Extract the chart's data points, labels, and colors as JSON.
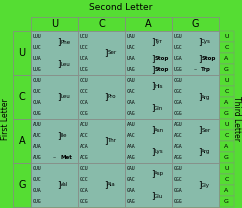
{
  "title": "Second Letter",
  "first_letter_label": "First Letter",
  "third_letter_label": "Third Letter",
  "col_headers": [
    "U",
    "C",
    "A",
    "G"
  ],
  "row_headers": [
    "U",
    "C",
    "A",
    "G"
  ],
  "third_letters": [
    "U",
    "C",
    "A",
    "G"
  ],
  "green": "#55dd33",
  "teal": "#88bbaa",
  "cells": [
    {
      "codons": [
        "UUU",
        "UUC",
        "UUA",
        "UUG"
      ],
      "aminos": [
        {
          "text": "Phe",
          "bold": false,
          "bracket": 2
        },
        {
          "text": "Leu",
          "bold": false,
          "bracket": 2,
          "dash": false
        }
      ]
    },
    {
      "codons": [
        "UCU",
        "UCC",
        "UCA",
        "UCG"
      ],
      "aminos": [
        {
          "text": "Ser",
          "bold": false,
          "bracket": 4
        }
      ]
    },
    {
      "codons": [
        "UAU",
        "UAC",
        "UAA",
        "UAG"
      ],
      "aminos": [
        {
          "text": "Tyr",
          "bold": false,
          "bracket": 2
        },
        {
          "text": "Stop",
          "bold": true,
          "bracket": 1
        },
        {
          "text": "Stop",
          "bold": true,
          "bracket": 1
        }
      ]
    },
    {
      "codons": [
        "UGU",
        "UGC",
        "UGA",
        "UGG"
      ],
      "aminos": [
        {
          "text": "Cys",
          "bold": false,
          "bracket": 2
        },
        {
          "text": "Stop",
          "bold": true,
          "bracket": 1
        },
        {
          "text": "Trp",
          "bold": true,
          "bracket": 1,
          "dash": true
        }
      ]
    },
    {
      "codons": [
        "CUU",
        "CUC",
        "CUA",
        "CUG"
      ],
      "aminos": [
        {
          "text": "Leu",
          "bold": false,
          "bracket": 4
        }
      ]
    },
    {
      "codons": [
        "CCU",
        "CCC",
        "CCA",
        "CCG"
      ],
      "aminos": [
        {
          "text": "Pro",
          "bold": false,
          "bracket": 4
        }
      ]
    },
    {
      "codons": [
        "CAU",
        "CAC",
        "CAA",
        "CAG"
      ],
      "aminos": [
        {
          "text": "His",
          "bold": false,
          "bracket": 2
        },
        {
          "text": "Gln",
          "bold": false,
          "bracket": 2
        }
      ]
    },
    {
      "codons": [
        "CGU",
        "CGC",
        "CGA",
        "CGG"
      ],
      "aminos": [
        {
          "text": "Arg",
          "bold": false,
          "bracket": 4
        }
      ]
    },
    {
      "codons": [
        "AUU",
        "AUC",
        "AUA",
        "AUG"
      ],
      "aminos": [
        {
          "text": "Ile",
          "bold": false,
          "bracket": 3
        },
        {
          "text": "Met",
          "bold": true,
          "bracket": 1,
          "dash": true
        }
      ]
    },
    {
      "codons": [
        "ACU",
        "ACC",
        "ACA",
        "ACG"
      ],
      "aminos": [
        {
          "text": "Thr",
          "bold": false,
          "bracket": 4
        }
      ]
    },
    {
      "codons": [
        "AAU",
        "AAC",
        "AAA",
        "AAG"
      ],
      "aminos": [
        {
          "text": "Asn",
          "bold": false,
          "bracket": 2
        },
        {
          "text": "Lys",
          "bold": false,
          "bracket": 2
        }
      ]
    },
    {
      "codons": [
        "AGU",
        "AGC",
        "AGA",
        "AGG"
      ],
      "aminos": [
        {
          "text": "Ser",
          "bold": false,
          "bracket": 2
        },
        {
          "text": "Arg",
          "bold": false,
          "bracket": 2
        }
      ]
    },
    {
      "codons": [
        "GUU",
        "GUC",
        "GUA",
        "GUG"
      ],
      "aminos": [
        {
          "text": "Val",
          "bold": false,
          "bracket": 4
        }
      ]
    },
    {
      "codons": [
        "GCU",
        "GCC",
        "GCA",
        "GCG"
      ],
      "aminos": [
        {
          "text": "Ala",
          "bold": false,
          "bracket": 4
        }
      ]
    },
    {
      "codons": [
        "GAU",
        "GAC",
        "GAA",
        "GAG"
      ],
      "aminos": [
        {
          "text": "Asp",
          "bold": false,
          "bracket": 2
        },
        {
          "text": "Glu",
          "bold": false,
          "bracket": 2
        }
      ]
    },
    {
      "codons": [
        "GGU",
        "GGC",
        "GGA",
        "GGG"
      ],
      "aminos": [
        {
          "text": "Gly",
          "bold": false,
          "bracket": 4
        }
      ]
    }
  ]
}
